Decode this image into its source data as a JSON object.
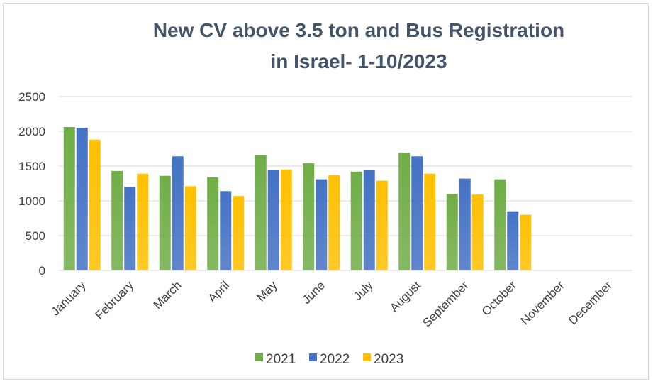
{
  "chart_data": {
    "type": "bar",
    "title_lines": [
      "New CV above 3.5 ton and Bus Registration",
      "in Israel- 1-10/2023"
    ],
    "categories": [
      "January",
      "February",
      "March",
      "April",
      "May",
      "June",
      "July",
      "August",
      "September",
      "October",
      "November",
      "December"
    ],
    "series": [
      {
        "name": "2021",
        "color": "#70ad47",
        "values": [
          2060,
          1430,
          1360,
          1340,
          1660,
          1540,
          1420,
          1690,
          1100,
          1310,
          null,
          null
        ]
      },
      {
        "name": "2022",
        "color": "#4472c4",
        "values": [
          2050,
          1200,
          1640,
          1140,
          1440,
          1310,
          1440,
          1640,
          1320,
          850,
          null,
          null
        ]
      },
      {
        "name": "2023",
        "color": "#ffc000",
        "values": [
          1880,
          1390,
          1210,
          1070,
          1450,
          1370,
          1290,
          1390,
          1090,
          800,
          null,
          null
        ]
      }
    ],
    "ylim": [
      0,
      2500
    ],
    "yticks": [
      0,
      500,
      1000,
      1500,
      2000,
      2500
    ],
    "grid": true,
    "legend_position": "bottom"
  }
}
